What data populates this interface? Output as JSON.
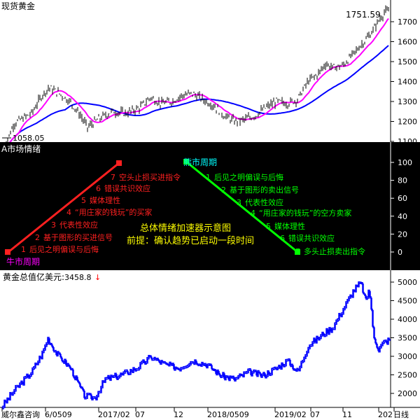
{
  "top_panel": {
    "title": "现货黄金",
    "current_price": "1751.59",
    "low_marker": "1058.05",
    "y_ticks": [
      "1700",
      "1600",
      "1500",
      "1400",
      "1300",
      "1200",
      "1100"
    ]
  },
  "middle_panel": {
    "title": "A市场情绪",
    "center_title": "总体情绪加速器示意图",
    "center_subtitle": "前提：确认趋势已启动一段时间",
    "bull_label": "牛市周期",
    "bear_label": "熊市周期",
    "y_ticks": [
      "100",
      "80",
      "60",
      "40",
      "20",
      "0"
    ],
    "bull_steps": [
      {
        "num": "1",
        "text": "后见之明偏误与后悔"
      },
      {
        "num": "2",
        "text": "基于图形的买进信号"
      },
      {
        "num": "3",
        "text": "代表性效应"
      },
      {
        "num": "4",
        "text": "“用庄家的钱玩”的买家"
      },
      {
        "num": "5",
        "text": "媒体理性"
      },
      {
        "num": "6",
        "text": "错误共识效应"
      },
      {
        "num": "7",
        "text": "空头止损买进指令"
      }
    ],
    "bear_steps": [
      {
        "num": "1",
        "text": "后见之明偏误与后悔"
      },
      {
        "num": "2",
        "text": "基于图形的卖出信号"
      },
      {
        "num": "3",
        "text": "代表性效应"
      },
      {
        "num": "4",
        "text": "“用庄家的钱玩”的空方卖家"
      },
      {
        "num": "5",
        "text": "媒体理性"
      },
      {
        "num": "6",
        "text": "错误共识效应"
      },
      {
        "num": "7",
        "text": "多头止损卖出指令"
      }
    ]
  },
  "bottom_panel": {
    "title": "黄金总值亿美元",
    "current_value": "3458.8",
    "arrow": "↓",
    "y_ticks": [
      "5000",
      "4500",
      "4000",
      "3500",
      "3000",
      "2500",
      "2000"
    ]
  },
  "x_axis": {
    "labels": [
      "威尔鑫咨询",
      "6/0509",
      "2017/02",
      "07",
      "12",
      "2018/0509",
      "2019/02",
      "07",
      "11",
      "202",
      "日线"
    ]
  },
  "colors": {
    "price": "#000000",
    "ma_fast": "#ff00ff",
    "ma_slow": "#0000ff",
    "bull": "#ff2020",
    "bear": "#00ff00",
    "center_text": "#ffff00",
    "bull_label": "#ff00ff",
    "bear_label": "#00ffff",
    "gold_value": "#0000ff"
  }
}
